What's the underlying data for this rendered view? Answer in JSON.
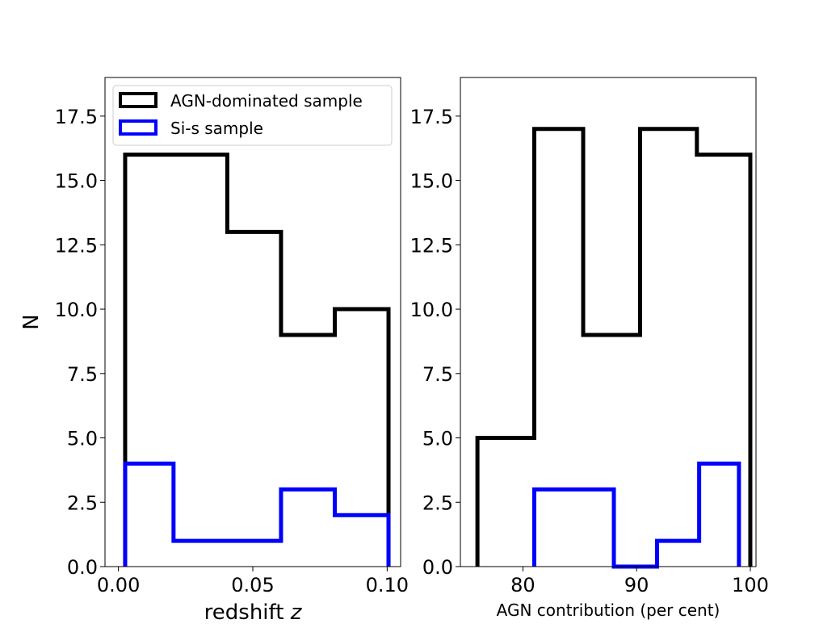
{
  "chart_data": [
    {
      "type": "histogram-step",
      "xlabel": "redshift",
      "xlabel_var": "z",
      "ylabel": "N",
      "xlim": [
        -0.005,
        0.105
      ],
      "ylim": [
        0,
        19
      ],
      "xticks": [
        0.0,
        0.05,
        0.1
      ],
      "xtick_labels": [
        "0.00",
        "0.05",
        "0.10"
      ],
      "yticks": [
        0,
        2.5,
        5,
        7.5,
        10,
        12.5,
        15,
        17.5
      ],
      "ytick_labels": [
        "0.0",
        "2.5",
        "5.0",
        "7.5",
        "10.0",
        "12.5",
        "15.0",
        "17.5"
      ],
      "legend_position": "upper-left",
      "series": [
        {
          "name": "AGN-dominated sample",
          "color": "#000000",
          "edges": [
            0.0025,
            0.0225,
            0.0405,
            0.0605,
            0.0805,
            0.1005
          ],
          "counts": [
            16,
            16,
            13,
            9,
            10
          ]
        },
        {
          "name": "Si-s sample",
          "color": "#0000ff",
          "edges": [
            0.0025,
            0.0205,
            0.0405,
            0.0605,
            0.0805,
            0.1005
          ],
          "counts": [
            4,
            1,
            1,
            3,
            2
          ]
        }
      ]
    },
    {
      "type": "histogram-step",
      "xlabel": "AGN contribution (per cent)",
      "ylabel": "",
      "xlim": [
        74.5,
        100.5
      ],
      "ylim": [
        0,
        19
      ],
      "xticks": [
        80,
        90,
        100
      ],
      "xtick_labels": [
        "80",
        "90",
        "100"
      ],
      "yticks": [
        0,
        2.5,
        5,
        7.5,
        10,
        12.5,
        15,
        17.5
      ],
      "ytick_labels": [
        "0.0",
        "2.5",
        "5.0",
        "7.5",
        "10.0",
        "12.5",
        "15.0",
        "17.5"
      ],
      "series": [
        {
          "name": "AGN-dominated sample",
          "color": "#000000",
          "edges": [
            76,
            81,
            85.3,
            90.3,
            95.3,
            100
          ],
          "counts": [
            5,
            17,
            9,
            17,
            16
          ]
        },
        {
          "name": "Si-s sample",
          "color": "#0000ff",
          "edges": [
            81,
            88,
            91.8,
            95.5,
            99
          ],
          "counts": [
            3,
            0,
            1,
            4
          ]
        }
      ]
    }
  ]
}
